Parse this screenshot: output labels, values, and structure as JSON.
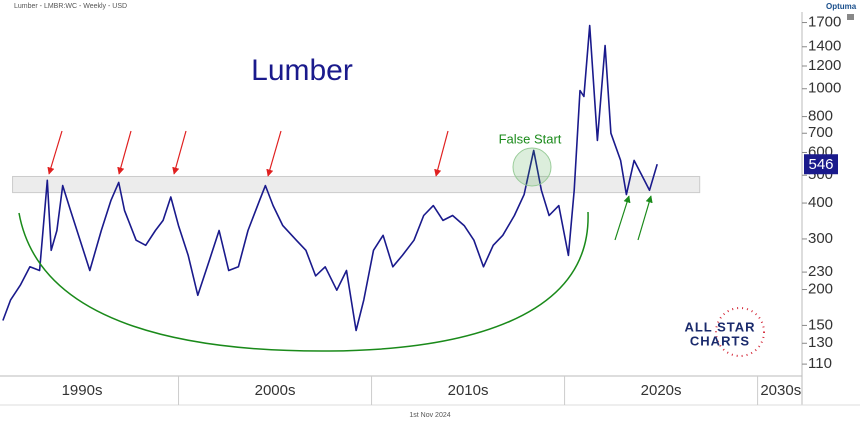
{
  "header": "Lumber - LMBR:WC - Weekly - USD",
  "brand": "Optuma",
  "footer": "1st Nov 2024",
  "logo": [
    "ALL STAR",
    "CHARTS"
  ],
  "chart_data": {
    "type": "line",
    "title": "Lumber",
    "annotations": [
      "False Start"
    ],
    "log_scale": true,
    "x": [
      1990.9,
      1991.3,
      1991.8,
      1992.3,
      1992.8,
      1993.2,
      1993.4,
      1993.7,
      1994.0,
      1994.4,
      1994.9,
      1995.4,
      1996.0,
      1996.5,
      1996.9,
      1997.2,
      1997.8,
      1998.3,
      1998.8,
      1999.2,
      1999.6,
      2000.0,
      2000.5,
      2001.0,
      2001.6,
      2002.1,
      2002.6,
      2003.1,
      2003.6,
      2004.2,
      2004.5,
      2004.9,
      2005.4,
      2006.1,
      2006.6,
      2007.1,
      2007.6,
      2008.2,
      2008.7,
      2009.2,
      2009.6,
      2010.1,
      2010.6,
      2011.1,
      2011.6,
      2012.2,
      2012.7,
      2013.2,
      2013.7,
      2014.2,
      2014.8,
      2015.3,
      2015.8,
      2016.3,
      2016.8,
      2017.4,
      2017.9,
      2018.4,
      2018.8,
      2019.2,
      2019.7,
      2020.2,
      2020.5,
      2020.8,
      2021.0,
      2021.3,
      2021.7,
      2022.1,
      2022.4,
      2022.9,
      2023.2,
      2023.6,
      2024.0,
      2024.4,
      2024.8
    ],
    "series": [
      {
        "name": "Lumber",
        "color": "#1a1a8c",
        "values": [
          156,
          184,
          207,
          240,
          233,
          480,
          274,
          321,
          460,
          377,
          297,
          233,
          321,
          409,
          472,
          377,
          297,
          285,
          321,
          348,
          420,
          334,
          263,
          191,
          253,
          321,
          233,
          240,
          321,
          409,
          460,
          392,
          334,
          297,
          274,
          223,
          240,
          199,
          233,
          144,
          184,
          274,
          309,
          240,
          263,
          297,
          362,
          392,
          348,
          362,
          334,
          297,
          240,
          285,
          309,
          362,
          428,
          610,
          443,
          362,
          392,
          263,
          443,
          986,
          940,
          1660,
          661,
          1414,
          700,
          563,
          428,
          563,
          500,
          443,
          546
        ]
      }
    ],
    "zone": {
      "low": 435,
      "high": 495,
      "x": [
        1991.4,
        2027
      ]
    },
    "xlim": [
      1990.75,
      2032.3
    ],
    "xticks": [
      {
        "value": 1995,
        "label": "1990s"
      },
      {
        "value": 2005,
        "label": "2000s"
      },
      {
        "value": 2015,
        "label": "2010s"
      },
      {
        "value": 2025,
        "label": "2020s"
      },
      {
        "value": 2031.2,
        "label": "2030s"
      }
    ],
    "ylim": [
      100,
      1850
    ],
    "yticks": [
      110,
      130,
      150,
      200,
      230,
      300,
      400,
      500,
      600,
      700,
      800,
      1000,
      1200,
      1400,
      1700
    ]
  }
}
